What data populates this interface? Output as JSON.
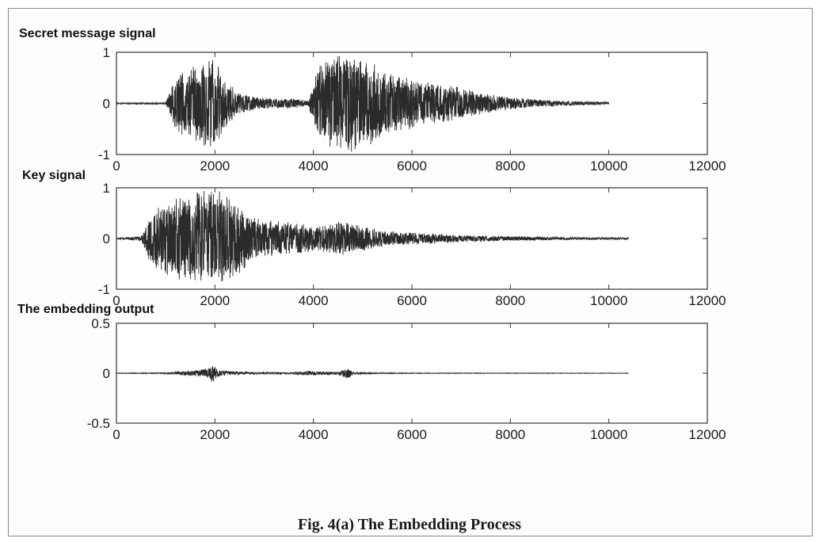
{
  "caption": "Fig. 4(a) The Embedding Process",
  "colors": {
    "signal": "#2b2b2b",
    "axis": "#333333",
    "text": "#111111"
  },
  "chart_data": [
    {
      "type": "line",
      "title": "Secret message signal",
      "xlim": [
        0,
        12000
      ],
      "ylim": [
        -1,
        1
      ],
      "xticks": [
        0,
        2000,
        4000,
        6000,
        8000,
        10000,
        12000
      ],
      "yticks": [
        -1,
        0,
        1
      ],
      "xtick_labels": [
        "0",
        "2000",
        "4000",
        "6000",
        "8000",
        "10000",
        "12000"
      ],
      "ytick_labels": [
        "-1",
        "0",
        "1"
      ],
      "signal_length": 10000,
      "envelope": {
        "x": [
          0,
          1000,
          1250,
          1500,
          1750,
          2000,
          2200,
          2500,
          2800,
          3200,
          3600,
          3900,
          4100,
          4400,
          4600,
          4800,
          5200,
          5600,
          6000,
          6500,
          7000,
          7500,
          8000,
          9000,
          10000
        ],
        "amplitude": [
          0.01,
          0.02,
          0.65,
          0.7,
          0.85,
          0.9,
          0.5,
          0.2,
          0.14,
          0.1,
          0.1,
          0.05,
          0.8,
          0.9,
          1.0,
          0.95,
          0.8,
          0.6,
          0.5,
          0.4,
          0.32,
          0.2,
          0.12,
          0.05,
          0.03
        ]
      }
    },
    {
      "type": "line",
      "title": "Key signal",
      "xlim": [
        0,
        12000
      ],
      "ylim": [
        -1,
        1
      ],
      "xticks": [
        0,
        2000,
        4000,
        6000,
        8000,
        10000,
        12000
      ],
      "yticks": [
        -1,
        0,
        1
      ],
      "xtick_labels": [
        "0",
        "2000",
        "4000",
        "6000",
        "8000",
        "10000",
        "12000"
      ],
      "ytick_labels": [
        "-1",
        "0",
        "1"
      ],
      "signal_length": 10400,
      "envelope": {
        "x": [
          0,
          500,
          700,
          1000,
          1500,
          1900,
          2100,
          2500,
          2900,
          3300,
          3700,
          4100,
          4500,
          4800,
          5200,
          5600,
          6000,
          6500,
          7000,
          8000,
          9000,
          10400
        ],
        "amplitude": [
          0.01,
          0.05,
          0.6,
          0.75,
          0.9,
          1.0,
          0.95,
          0.7,
          0.4,
          0.35,
          0.3,
          0.25,
          0.35,
          0.3,
          0.2,
          0.15,
          0.12,
          0.1,
          0.07,
          0.05,
          0.03,
          0.02
        ]
      }
    },
    {
      "type": "line",
      "title": "The embedding output",
      "xlim": [
        0,
        12000
      ],
      "ylim": [
        -0.5,
        0.5
      ],
      "xticks": [
        0,
        2000,
        4000,
        6000,
        8000,
        10000,
        12000
      ],
      "yticks": [
        -0.5,
        0,
        0.5
      ],
      "xtick_labels": [
        "0",
        "2000",
        "4000",
        "6000",
        "8000",
        "10000",
        "12000"
      ],
      "ytick_labels": [
        "-0.5",
        "0",
        "0.5"
      ],
      "signal_length": 10400,
      "envelope": {
        "x": [
          0,
          1000,
          1300,
          1600,
          1850,
          1950,
          2050,
          2300,
          2800,
          3500,
          3900,
          4100,
          4500,
          4700,
          4800,
          5200,
          6000,
          8000,
          10400
        ],
        "amplitude": [
          0.005,
          0.01,
          0.04,
          0.06,
          0.1,
          0.2,
          0.08,
          0.04,
          0.02,
          0.015,
          0.05,
          0.04,
          0.03,
          0.12,
          0.03,
          0.01,
          0.006,
          0.005,
          0.004
        ]
      }
    }
  ]
}
